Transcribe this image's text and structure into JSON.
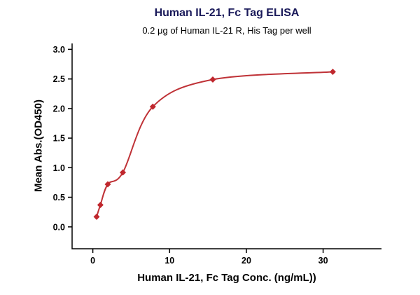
{
  "chart_data": {
    "type": "scatter",
    "title": "Human IL-21, Fc Tag ELISA",
    "subtitle": "0.2 μg of Human IL-21 R, His Tag per well",
    "xlabel": "Human IL-21, Fc Tag Conc. (ng/mL))",
    "ylabel": "Mean Abs.(OD450)",
    "x": [
      0.49,
      0.98,
      1.95,
      3.91,
      7.81,
      15.63,
      31.25
    ],
    "y": [
      0.17,
      0.37,
      0.72,
      0.92,
      2.03,
      2.49,
      2.62
    ],
    "x_ticks": [
      "0",
      "10",
      "20",
      "30"
    ],
    "y_ticks": [
      "0.0",
      "0.5",
      "1.0",
      "1.5",
      "2.0",
      "2.5",
      "3.0"
    ],
    "xlim": [
      -2.7,
      37.6
    ],
    "ylim": [
      -0.37,
      3.1
    ],
    "curve": "smooth fit through points",
    "marker_shape": "diamond",
    "legend": "none",
    "grid": false,
    "colors": {
      "curve": "#bf3237",
      "marker": "#c0272d",
      "axis": "#000000",
      "title": "#1a1a5a",
      "text": "#000000"
    }
  }
}
